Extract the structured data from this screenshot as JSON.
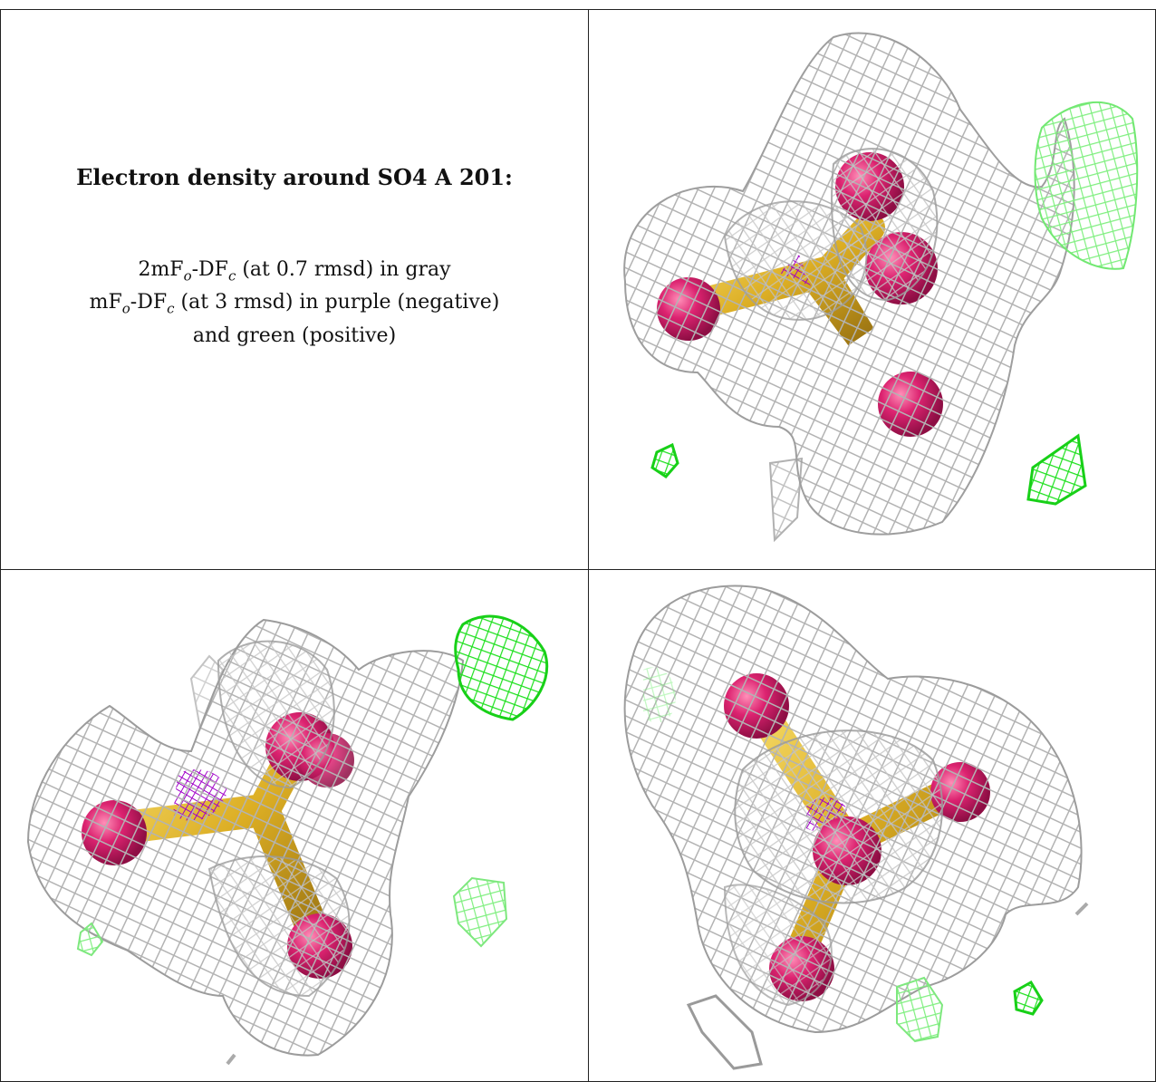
{
  "caption": {
    "title": "Electron density around SO4 A 201:",
    "line1_prefix": "2mF",
    "line1_sub1": "o",
    "line1_mid": "-DF",
    "line1_sub2": "c",
    "line1_suffix": " (at 0.7 rmsd) in gray",
    "line2_prefix": "mF",
    "line2_sub1": "o",
    "line2_mid": "-DF",
    "line2_sub2": "c",
    "line2_suffix": " (at 3 rmsd) in purple (negative)",
    "line3": "and green (positive)"
  },
  "colors": {
    "mesh_gray": "#b9b9b9",
    "mesh_green_bright": "#22e022",
    "mesh_green_light": "#7df07d",
    "mesh_purple": "#a000c8",
    "oxygen": "#d41f6a",
    "sulfur": "#e2b52a"
  },
  "views": [
    {
      "name": "view-top-right"
    },
    {
      "name": "view-bottom-left"
    },
    {
      "name": "view-bottom-right"
    }
  ]
}
